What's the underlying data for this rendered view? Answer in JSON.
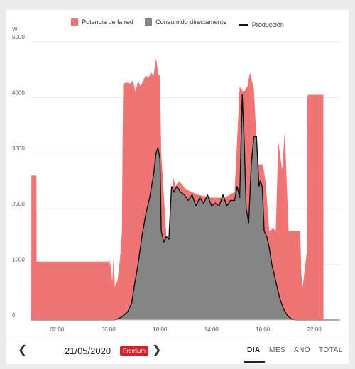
{
  "legend": {
    "grid_power": "Potencia de la red",
    "direct_consumption": "Consumido directamente",
    "production": "Producción"
  },
  "colors": {
    "grid": "#f07474",
    "direct": "#858585",
    "production": "#111111"
  },
  "footer": {
    "date": "21/05/2020",
    "badge": "Premium",
    "tabs": [
      "DÍA",
      "MES",
      "AÑO",
      "TOTAL"
    ],
    "active_tab": "DÍA"
  },
  "chart_data": {
    "type": "area",
    "ylabel": "W",
    "ylim": [
      0,
      5000
    ],
    "xlim": [
      0,
      24
    ],
    "y_ticks": [
      0,
      1000,
      2000,
      3000,
      4000,
      5000
    ],
    "x_ticks": [
      2,
      6,
      10,
      14,
      18,
      22
    ],
    "x_tick_labels": [
      "02:00",
      "06:00",
      "10:00",
      "14:00",
      "18:00",
      "22:00"
    ],
    "grid": "horizontal",
    "legend_position": "top-center",
    "series": [
      {
        "name": "Potencia de la red",
        "kind": "area",
        "x": [
          0.0,
          0.01,
          0.4,
          0.42,
          0.5,
          6.0,
          6.05,
          6.1,
          6.3,
          6.4,
          6.5,
          6.7,
          6.9,
          7.05,
          7.1,
          7.15,
          7.4,
          7.7,
          7.9,
          8.1,
          8.3,
          8.5,
          8.7,
          8.9,
          9.1,
          9.3,
          9.5,
          9.7,
          9.9,
          10.0,
          10.1,
          10.5,
          10.8,
          11.0,
          11.2,
          11.5,
          12.0,
          13.0,
          14.0,
          15.0,
          15.8,
          16.2,
          16.5,
          16.8,
          17.0,
          17.3,
          17.6,
          18.0,
          18.2,
          18.5,
          18.8,
          19.0,
          19.2,
          19.5,
          19.7,
          20.0,
          20.3,
          20.6,
          20.9,
          21.0,
          21.1,
          21.3,
          21.4,
          21.45,
          21.5,
          22.0,
          22.7,
          22.71
        ],
        "y": [
          0,
          2600,
          2600,
          1050,
          1050,
          1050,
          850,
          1100,
          700,
          1150,
          600,
          700,
          1100,
          1600,
          3300,
          4250,
          4270,
          4250,
          4300,
          4100,
          4300,
          4200,
          4300,
          4400,
          4350,
          4450,
          4400,
          4700,
          4400,
          4400,
          3000,
          1500,
          1450,
          2600,
          2400,
          2500,
          2350,
          2250,
          2200,
          2200,
          2300,
          4200,
          4100,
          4200,
          4450,
          4150,
          2800,
          2800,
          2500,
          1600,
          1650,
          1600,
          3200,
          2700,
          3400,
          1600,
          1600,
          1600,
          1600,
          800,
          600,
          1000,
          1200,
          4000,
          4050,
          4050,
          4050,
          0
        ]
      },
      {
        "name": "Consumido directamente",
        "kind": "area",
        "x": [
          0.0,
          6.5,
          7.0,
          7.5,
          7.8,
          8.0,
          8.3,
          8.6,
          8.9,
          9.2,
          9.5,
          9.7,
          9.85,
          10.0,
          10.1,
          10.3,
          10.5,
          10.7,
          10.9,
          11.1,
          11.3,
          11.6,
          11.9,
          12.2,
          12.5,
          12.8,
          13.1,
          13.4,
          13.7,
          14.0,
          14.3,
          14.6,
          14.9,
          15.2,
          15.5,
          15.8,
          16.0,
          16.2,
          16.4,
          16.55,
          16.7,
          16.9,
          17.1,
          17.3,
          17.5,
          17.7,
          17.8,
          17.95,
          18.1,
          18.3,
          18.5,
          18.7,
          19.0,
          19.3,
          19.6,
          19.9,
          20.2,
          20.5,
          20.8,
          21.1,
          24.0
        ],
        "y": [
          0,
          0,
          50,
          150,
          300,
          600,
          1000,
          1500,
          1900,
          2200,
          2600,
          3000,
          3100,
          2900,
          1600,
          1400,
          1500,
          1450,
          2400,
          2300,
          2400,
          2300,
          2250,
          2150,
          2250,
          2050,
          2200,
          2100,
          2250,
          2050,
          2100,
          2050,
          2250,
          2050,
          2150,
          2150,
          2400,
          2200,
          4050,
          3200,
          2000,
          1750,
          2800,
          3300,
          3300,
          2400,
          2500,
          2400,
          1600,
          1500,
          1300,
          1000,
          700,
          400,
          200,
          80,
          20,
          0,
          0,
          0,
          0
        ]
      },
      {
        "name": "Producción",
        "kind": "line",
        "x": [
          0.0,
          6.5,
          7.0,
          7.5,
          7.8,
          8.0,
          8.3,
          8.6,
          8.9,
          9.2,
          9.5,
          9.7,
          9.85,
          10.0,
          10.1,
          10.3,
          10.5,
          10.7,
          10.9,
          11.1,
          11.3,
          11.6,
          11.9,
          12.2,
          12.5,
          12.8,
          13.1,
          13.4,
          13.7,
          14.0,
          14.3,
          14.6,
          14.9,
          15.2,
          15.5,
          15.8,
          16.0,
          16.2,
          16.4,
          16.55,
          16.7,
          16.9,
          17.1,
          17.3,
          17.5,
          17.7,
          17.8,
          17.95,
          18.1,
          18.3,
          18.5,
          18.7,
          19.0,
          19.3,
          19.6,
          19.9,
          20.2,
          20.5,
          20.8,
          21.1,
          24.0
        ],
        "y": [
          0,
          0,
          50,
          150,
          300,
          600,
          1000,
          1500,
          1900,
          2200,
          2600,
          3000,
          3100,
          2900,
          1600,
          1400,
          1500,
          1450,
          2400,
          2300,
          2400,
          2300,
          2250,
          2150,
          2250,
          2050,
          2200,
          2100,
          2250,
          2050,
          2100,
          2050,
          2250,
          2050,
          2150,
          2150,
          2400,
          2200,
          4050,
          3200,
          2000,
          1750,
          2800,
          3300,
          3300,
          2400,
          2500,
          2400,
          1600,
          1500,
          1300,
          1000,
          700,
          400,
          200,
          80,
          20,
          0,
          0,
          0,
          0
        ]
      }
    ]
  }
}
